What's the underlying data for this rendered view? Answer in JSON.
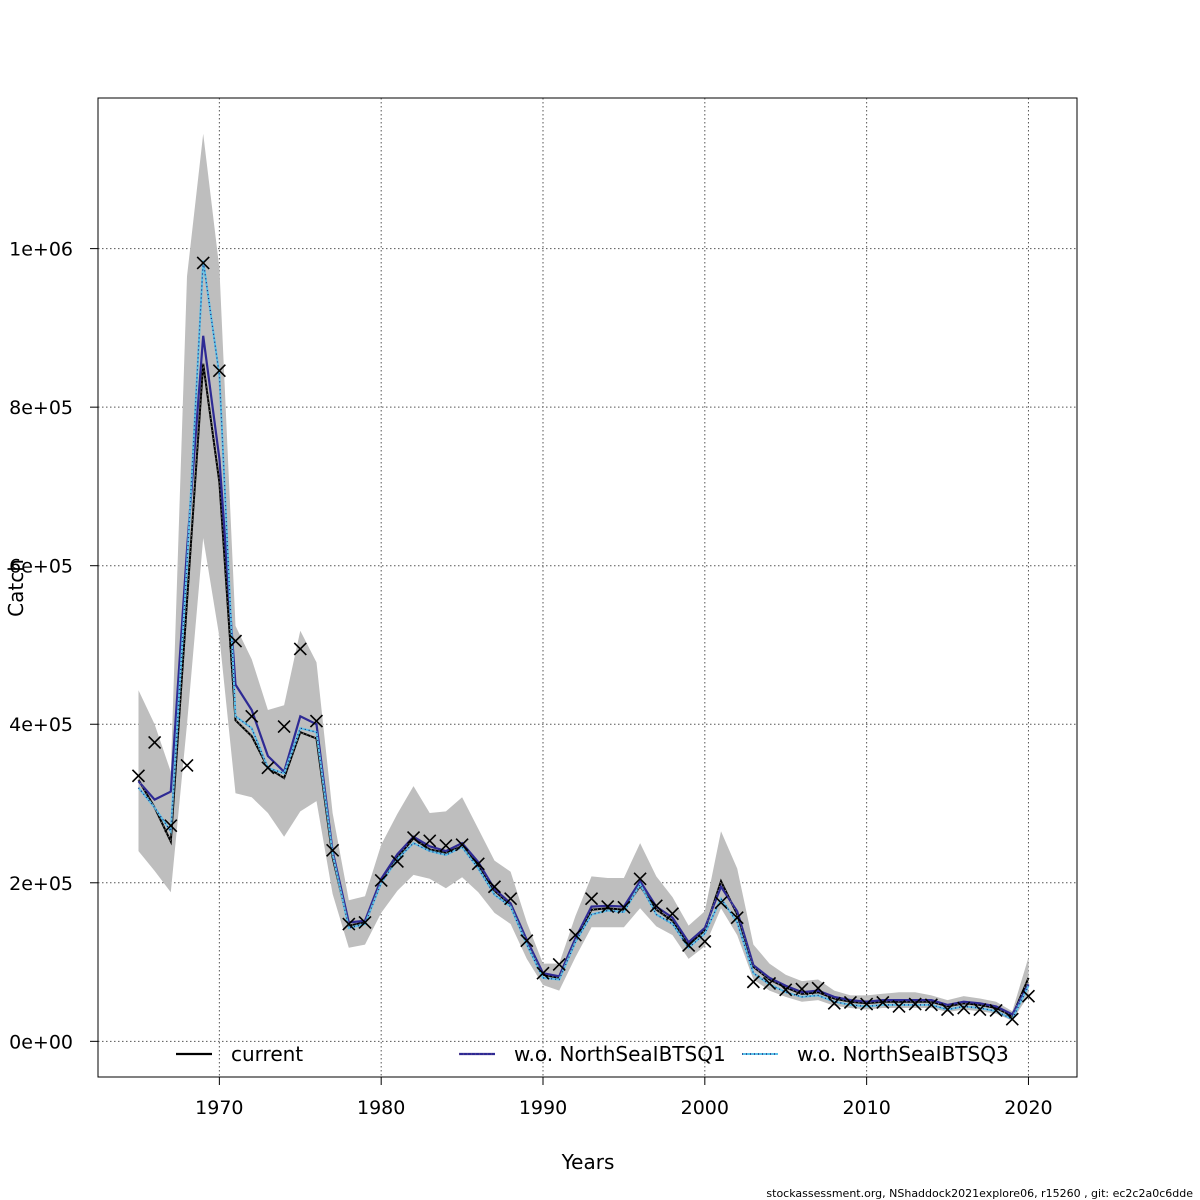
{
  "chart_data": {
    "type": "line",
    "title": "",
    "xlabel": "Years",
    "ylabel": "Catch",
    "xlim": [
      1962.5,
      2023
    ],
    "ylim": [
      -45000,
      1190000
    ],
    "xticks": [
      1970,
      1980,
      1990,
      2000,
      2010,
      2020
    ],
    "xtick_labels": [
      "1970",
      "1980",
      "1990",
      "2000",
      "2010",
      "2020"
    ],
    "yticks": [
      0,
      200000,
      400000,
      600000,
      800000,
      1000000
    ],
    "ytick_labels": [
      "0e+00",
      "2e+05",
      "4e+05",
      "6e+05",
      "8e+05",
      "1e+06"
    ],
    "grid": true,
    "legend_position": "bottom",
    "x": [
      1965,
      1966,
      1967,
      1968,
      1969,
      1970,
      1971,
      1972,
      1973,
      1974,
      1975,
      1976,
      1977,
      1978,
      1979,
      1980,
      1981,
      1982,
      1983,
      1984,
      1985,
      1986,
      1987,
      1988,
      1989,
      1990,
      1991,
      1992,
      1993,
      1994,
      1995,
      1996,
      1997,
      1998,
      1999,
      2000,
      2001,
      2002,
      2003,
      2004,
      2005,
      2006,
      2007,
      2008,
      2009,
      2010,
      2011,
      2012,
      2013,
      2014,
      2015,
      2016,
      2017,
      2018,
      2019,
      2020
    ],
    "series": [
      {
        "name": "current",
        "color": "#000000",
        "style": "solid",
        "values": [
          330000,
          295000,
          252000,
          555000,
          855000,
          705000,
          405000,
          385000,
          345000,
          332000,
          390000,
          382000,
          232000,
          146000,
          150000,
          202000,
          232000,
          256000,
          242000,
          238000,
          246000,
          222000,
          190000,
          172000,
          126000,
          84000,
          80000,
          128000,
          166000,
          168000,
          166000,
          196000,
          166000,
          152000,
          122000,
          140000,
          202000,
          160000,
          94000,
          78000,
          68000,
          60000,
          62000,
          54000,
          50000,
          48000,
          50000,
          50000,
          50000,
          50000,
          44000,
          48000,
          46000,
          42000,
          32000,
          80000
        ],
        "lower": [
          240000,
          215000,
          188000,
          400000,
          635000,
          510000,
          313000,
          308000,
          288000,
          258000,
          290000,
          303000,
          186000,
          118000,
          122000,
          162000,
          190000,
          210000,
          205000,
          193000,
          207000,
          188000,
          162000,
          148000,
          104000,
          71000,
          64000,
          106000,
          144000,
          144000,
          144000,
          168000,
          145000,
          134000,
          104000,
          120000,
          168000,
          134000,
          78000,
          64000,
          56000,
          50000,
          52000,
          45000,
          42000,
          40000,
          42000,
          42000,
          42000,
          42000,
          37000,
          40000,
          38000,
          35000,
          26000,
          58000
        ],
        "upper": [
          443000,
          400000,
          340000,
          965000,
          1145000,
          975000,
          524000,
          482000,
          418000,
          424000,
          518000,
          478000,
          288000,
          178000,
          183000,
          248000,
          287000,
          322000,
          288000,
          290000,
          308000,
          268000,
          228000,
          214000,
          150000,
          98000,
          98000,
          158000,
          208000,
          206000,
          206000,
          250000,
          208000,
          182000,
          146000,
          164000,
          265000,
          218000,
          122000,
          98000,
          84000,
          76000,
          78000,
          64000,
          58000,
          58000,
          60000,
          62000,
          62000,
          58000,
          52000,
          57000,
          54000,
          50000,
          38000,
          106000
        ]
      },
      {
        "name": "w.o. NorthSeaIBTSQ1",
        "color": "#2e2a94",
        "style": "solid",
        "values": [
          328000,
          305000,
          315000,
          620000,
          890000,
          735000,
          450000,
          418000,
          360000,
          340000,
          410000,
          400000,
          240000,
          150000,
          152000,
          205000,
          236000,
          258000,
          246000,
          240000,
          250000,
          226000,
          192000,
          174000,
          128000,
          86000,
          82000,
          130000,
          170000,
          171000,
          170000,
          202000,
          170000,
          156000,
          125000,
          143000,
          195000,
          164000,
          96000,
          80000,
          70000,
          62000,
          64000,
          56000,
          52000,
          50000,
          52000,
          52000,
          52000,
          52000,
          46000,
          50000,
          48000,
          44000,
          34000,
          72000
        ]
      },
      {
        "name": "w.o. NorthSeaIBTSQ3",
        "color": "#5bc0e8",
        "style": "dotted",
        "values": [
          320000,
          295000,
          265000,
          600000,
          985000,
          840000,
          410000,
          395000,
          345000,
          338000,
          395000,
          390000,
          236000,
          143000,
          148000,
          200000,
          230000,
          250000,
          240000,
          235000,
          245000,
          218000,
          185000,
          170000,
          122000,
          80000,
          78000,
          125000,
          160000,
          165000,
          163000,
          198000,
          160000,
          148000,
          118000,
          136000,
          180000,
          150000,
          86000,
          72000,
          62000,
          56000,
          58000,
          50000,
          46000,
          44000,
          46000,
          46000,
          46000,
          46000,
          40000,
          44000,
          42000,
          38000,
          28000,
          70000
        ]
      }
    ],
    "observations": {
      "marker": "x",
      "values": [
        335000,
        377000,
        272000,
        348000,
        982000,
        846000,
        505000,
        410000,
        345000,
        397000,
        495000,
        404000,
        241000,
        148000,
        150000,
        203000,
        227000,
        257000,
        253000,
        247000,
        248000,
        224000,
        195000,
        180000,
        127000,
        86000,
        97000,
        134000,
        180000,
        170000,
        169000,
        205000,
        171000,
        161000,
        121000,
        126000,
        175000,
        156000,
        75000,
        73000,
        65000,
        66000,
        67000,
        48000,
        49000,
        47000,
        49000,
        44000,
        47000,
        46000,
        40000,
        42000,
        40000,
        39000,
        28000,
        57000
      ]
    },
    "ci_color": "#bebebe"
  },
  "footer": "stockassessment.org, NShaddock2021explore06, r15260 , git: ec2c2a0c6dde"
}
